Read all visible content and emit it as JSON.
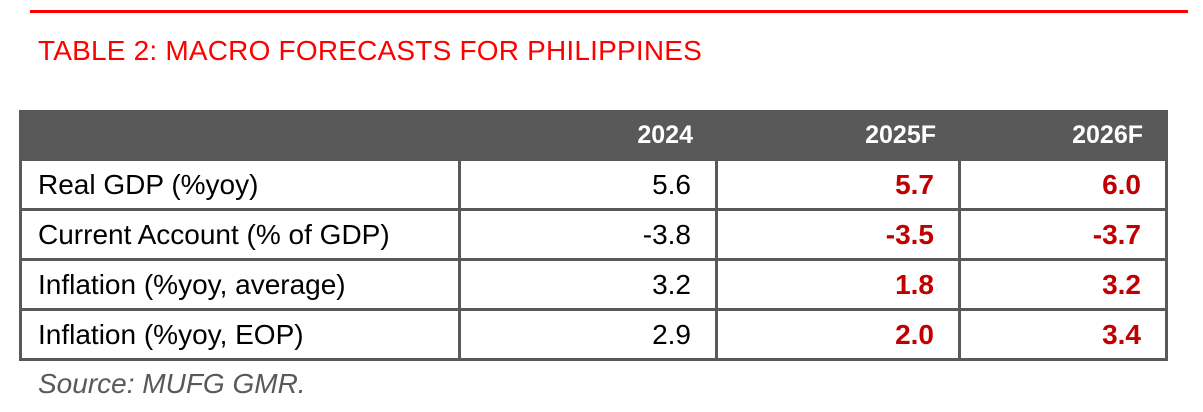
{
  "page": {
    "background": "#ffffff",
    "accent_red": "#ff0000",
    "forecast_red": "#c00000",
    "header_gray": "#595959",
    "border_gray": "#595959",
    "source_gray": "#595959"
  },
  "title": {
    "text": "TABLE 2: MACRO FORECASTS FOR PHILIPPINES"
  },
  "table": {
    "columns": [
      "",
      "2024",
      "2025F",
      "2026F"
    ],
    "rows": [
      {
        "label": "Real GDP (%yoy)",
        "values": [
          "5.6",
          "5.7",
          "6.0"
        ]
      },
      {
        "label": "Current Account (% of GDP)",
        "values": [
          "-3.8",
          "-3.5",
          "-3.7"
        ]
      },
      {
        "label": "Inflation (%yoy, average)",
        "values": [
          "3.2",
          "1.8",
          "3.2"
        ]
      },
      {
        "label": "Inflation (%yoy, EOP)",
        "values": [
          "2.9",
          "2.0",
          "3.4"
        ]
      }
    ]
  },
  "source": {
    "text": "Source: MUFG GMR."
  },
  "chart_data": {
    "type": "table",
    "title": "TABLE 2: MACRO FORECASTS FOR PHILIPPINES",
    "categories": [
      "2024",
      "2025F",
      "2026F"
    ],
    "series": [
      {
        "name": "Real GDP (%yoy)",
        "values": [
          5.6,
          5.7,
          6.0
        ]
      },
      {
        "name": "Current Account (% of GDP)",
        "values": [
          -3.8,
          -3.5,
          -3.7
        ]
      },
      {
        "name": "Inflation (%yoy, average)",
        "values": [
          3.2,
          1.8,
          3.2
        ]
      },
      {
        "name": "Inflation (%yoy, EOP)",
        "values": [
          2.9,
          2.0,
          3.4
        ]
      }
    ],
    "annotations": [
      "Source: MUFG GMR."
    ]
  }
}
